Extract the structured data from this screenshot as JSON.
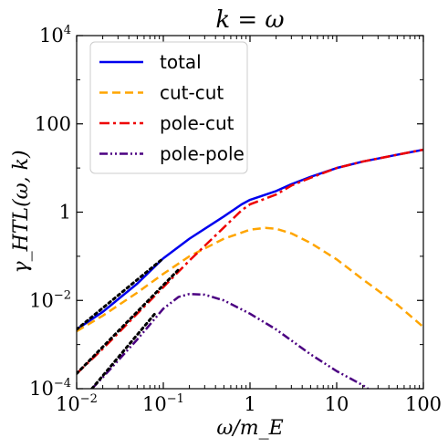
{
  "chart_data": {
    "type": "line",
    "title": "k = ω",
    "xlabel": "ω/m_E",
    "ylabel": "γ_HTL(ω, k)",
    "xscale": "log",
    "yscale": "log",
    "xlim": [
      0.01,
      100
    ],
    "ylim": [
      0.0001,
      10000
    ],
    "x_ticks": [
      {
        "value": 0.01,
        "base": "10",
        "exp": "−2"
      },
      {
        "value": 0.1,
        "base": "10",
        "exp": "−1"
      },
      {
        "value": 1,
        "base": "1",
        "exp": ""
      },
      {
        "value": 10,
        "base": "10",
        "exp": ""
      },
      {
        "value": 100,
        "base": "100",
        "exp": ""
      }
    ],
    "y_ticks": [
      {
        "value": 0.0001,
        "base": "10",
        "exp": "−4"
      },
      {
        "value": 0.01,
        "base": "10",
        "exp": "−2"
      },
      {
        "value": 1,
        "base": "1",
        "exp": ""
      },
      {
        "value": 100,
        "base": "100",
        "exp": ""
      },
      {
        "value": 10000,
        "base": "10",
        "exp": "4"
      }
    ],
    "legend": {
      "placement": "top-left"
    },
    "series": [
      {
        "name": "total",
        "color": "#0000ee",
        "dash": "solid",
        "points": [
          [
            0.01,
            0.0022
          ],
          [
            0.02,
            0.0055
          ],
          [
            0.05,
            0.024
          ],
          [
            0.1,
            0.09
          ],
          [
            0.2,
            0.25
          ],
          [
            0.5,
            0.8
          ],
          [
            0.8,
            1.5
          ],
          [
            1,
            1.9
          ],
          [
            2,
            3.0
          ],
          [
            3,
            4.3
          ],
          [
            5,
            6.3
          ],
          [
            10,
            10
          ],
          [
            20,
            14
          ],
          [
            50,
            20
          ],
          [
            100,
            26
          ]
        ]
      },
      {
        "name": "cut-cut",
        "color": "#ffa500",
        "dash": "dashed",
        "points": [
          [
            0.01,
            0.002
          ],
          [
            0.02,
            0.0045
          ],
          [
            0.05,
            0.015
          ],
          [
            0.1,
            0.04
          ],
          [
            0.2,
            0.1
          ],
          [
            0.5,
            0.25
          ],
          [
            1,
            0.4
          ],
          [
            1.5,
            0.44
          ],
          [
            2,
            0.42
          ],
          [
            3,
            0.33
          ],
          [
            5,
            0.2
          ],
          [
            10,
            0.085
          ],
          [
            20,
            0.03
          ],
          [
            50,
            0.008
          ],
          [
            100,
            0.0025
          ]
        ]
      },
      {
        "name": "pole-cut",
        "color": "#ee0000",
        "dash": "dashdot",
        "points": [
          [
            0.01,
            0.00022
          ],
          [
            0.02,
            0.0008
          ],
          [
            0.05,
            0.005
          ],
          [
            0.1,
            0.02
          ],
          [
            0.2,
            0.08
          ],
          [
            0.5,
            0.45
          ],
          [
            0.8,
            1.1
          ],
          [
            1,
            1.5
          ],
          [
            2,
            2.5
          ],
          [
            3,
            4.0
          ],
          [
            5,
            6.0
          ],
          [
            10,
            10
          ],
          [
            20,
            14
          ],
          [
            50,
            20
          ],
          [
            100,
            26
          ]
        ]
      },
      {
        "name": "pole-pole",
        "color": "#4b0082",
        "dash": "dashdotdot",
        "points": [
          [
            0.015,
            0.0001
          ],
          [
            0.02,
            0.00018
          ],
          [
            0.05,
            0.0013
          ],
          [
            0.1,
            0.0065
          ],
          [
            0.15,
            0.012
          ],
          [
            0.2,
            0.014
          ],
          [
            0.3,
            0.0135
          ],
          [
            0.5,
            0.01
          ],
          [
            1,
            0.005
          ],
          [
            2,
            0.0022
          ],
          [
            5,
            0.0006
          ],
          [
            10,
            0.00025
          ],
          [
            20,
            0.00012
          ],
          [
            23,
            0.0001
          ]
        ]
      },
      {
        "name": "",
        "color": "#000000",
        "dash": "dotted",
        "legend": false,
        "points": [
          [
            0.01,
            0.0022
          ],
          [
            0.1,
            0.09
          ]
        ]
      },
      {
        "name": "",
        "color": "#000000",
        "dash": "dotted",
        "legend": false,
        "points": [
          [
            0.01,
            0.00022
          ],
          [
            0.15,
            0.05
          ]
        ]
      },
      {
        "name": "",
        "color": "#000000",
        "dash": "dotted",
        "legend": false,
        "points": [
          [
            0.015,
            0.0001
          ],
          [
            0.08,
            0.005
          ]
        ]
      }
    ]
  }
}
